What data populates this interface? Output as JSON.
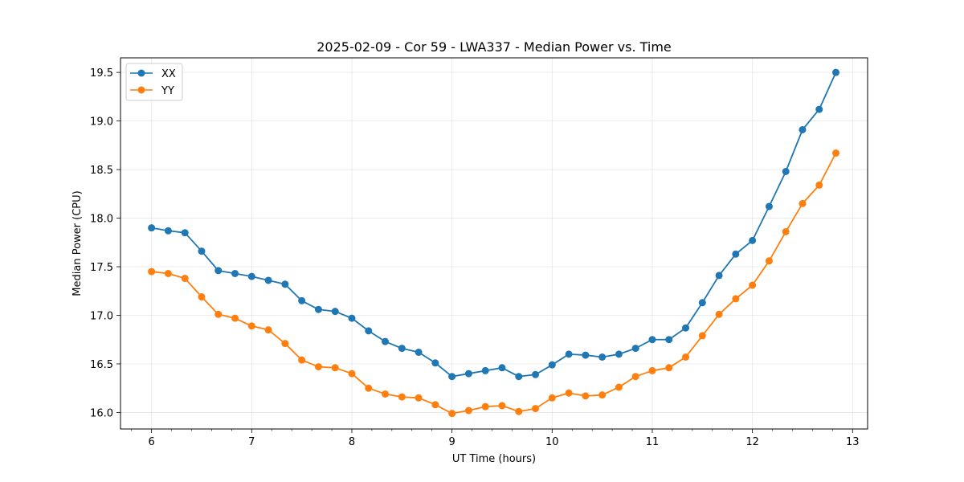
{
  "chart_data": {
    "type": "line",
    "title": "2025-02-09 - Cor 59 - LWA337 - Median Power vs. Time",
    "xlabel": "UT Time (hours)",
    "ylabel": "Median Power (CPU)",
    "xlim": [
      5.69,
      13.15
    ],
    "ylim": [
      15.83,
      19.65
    ],
    "xticks": [
      6,
      7,
      8,
      9,
      10,
      11,
      12,
      13
    ],
    "xtick_labels": [
      "6",
      "7",
      "8",
      "9",
      "10",
      "11",
      "12",
      "13"
    ],
    "yticks": [
      16.0,
      16.5,
      17.0,
      17.5,
      18.0,
      18.5,
      19.0,
      19.5
    ],
    "ytick_labels": [
      "16.0",
      "16.5",
      "17.0",
      "17.5",
      "18.0",
      "18.5",
      "19.0",
      "19.5"
    ],
    "grid": true,
    "legend_position": "top-left",
    "x": [
      6.0,
      6.1667,
      6.3333,
      6.5,
      6.6667,
      6.8333,
      7.0,
      7.1667,
      7.3333,
      7.5,
      7.6667,
      7.8333,
      8.0,
      8.1667,
      8.3333,
      8.5,
      8.6667,
      8.8333,
      9.0,
      9.1667,
      9.3333,
      9.5,
      9.6667,
      9.8333,
      10.0,
      10.1667,
      10.3333,
      10.5,
      10.6667,
      10.8333,
      11.0,
      11.1667,
      11.3333,
      11.5,
      11.6667,
      11.8333,
      12.0,
      12.1667,
      12.3333,
      12.5,
      12.6667,
      12.8333
    ],
    "series": [
      {
        "name": "XX",
        "color": "#1f77b4",
        "values": [
          17.9,
          17.87,
          17.85,
          17.66,
          17.46,
          17.43,
          17.4,
          17.36,
          17.32,
          17.15,
          17.06,
          17.04,
          16.97,
          16.84,
          16.73,
          16.66,
          16.62,
          16.51,
          16.37,
          16.4,
          16.43,
          16.46,
          16.37,
          16.39,
          16.49,
          16.6,
          16.59,
          16.57,
          16.6,
          16.66,
          16.75,
          16.75,
          16.87,
          17.13,
          17.41,
          17.63,
          17.77,
          18.12,
          18.48,
          18.91,
          19.12,
          19.5
        ]
      },
      {
        "name": "YY",
        "color": "#ff7f0e",
        "values": [
          17.45,
          17.43,
          17.38,
          17.19,
          17.01,
          16.97,
          16.89,
          16.85,
          16.71,
          16.54,
          16.47,
          16.46,
          16.4,
          16.25,
          16.19,
          16.16,
          16.15,
          16.08,
          15.99,
          16.02,
          16.06,
          16.07,
          16.01,
          16.04,
          16.15,
          16.2,
          16.17,
          16.18,
          16.26,
          16.37,
          16.43,
          16.46,
          16.57,
          16.79,
          17.01,
          17.17,
          17.31,
          17.56,
          17.86,
          18.15,
          18.34,
          18.67
        ]
      }
    ]
  }
}
